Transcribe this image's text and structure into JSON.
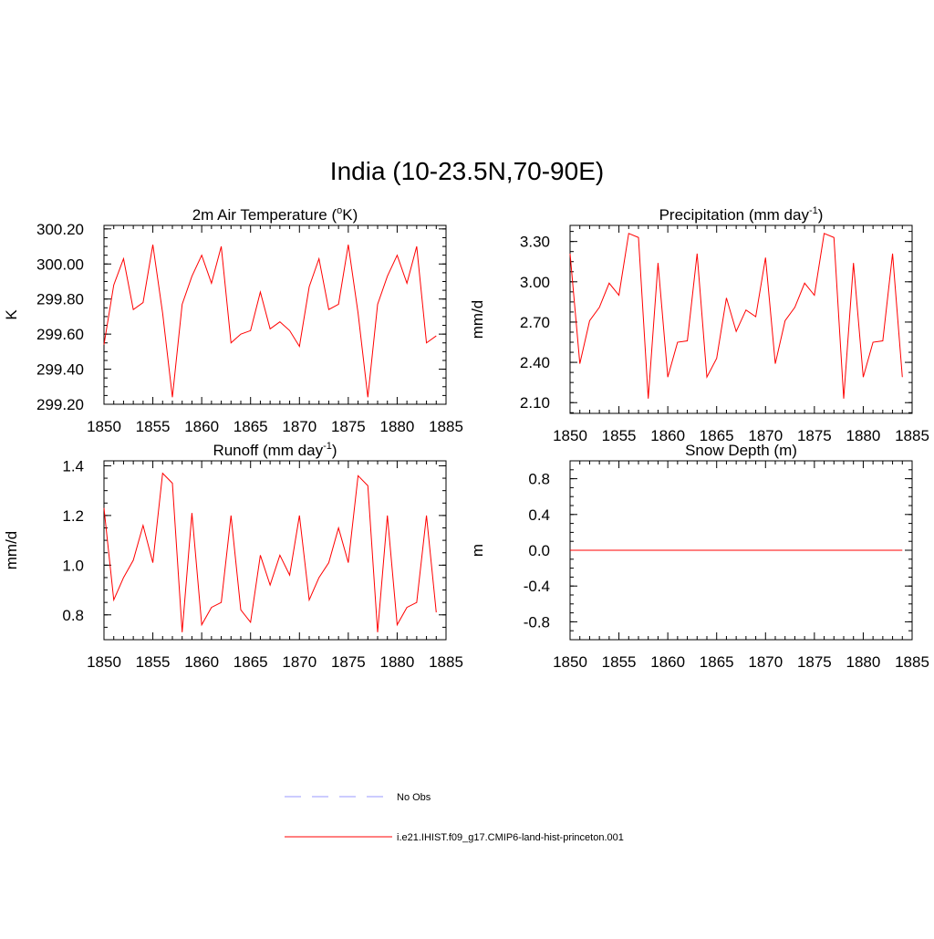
{
  "title": "India (10-23.5N,70-90E)",
  "colors": {
    "model": "#ff0000",
    "obs": "#9999ff",
    "axis": "#000000"
  },
  "legend": [
    {
      "label": "No Obs",
      "style": "dashed",
      "color": "#9999ff"
    },
    {
      "label": "i.e21.IHIST.f09_g17.CMIP6-land-hist-princeton.001",
      "style": "solid",
      "color": "#ff0000"
    }
  ],
  "chart_data": [
    {
      "type": "line",
      "title": "2m Air Temperature (",
      "title_sup": "o",
      "title_after": "K)",
      "ylabel": "K",
      "xlim": [
        1850,
        1885
      ],
      "ylim": [
        299.2,
        300.22
      ],
      "xticks": [
        "1850",
        "1855",
        "1860",
        "1865",
        "1870",
        "1875",
        "1880",
        "1885"
      ],
      "yticks": [
        "299.20",
        "299.40",
        "299.60",
        "299.80",
        "300.00",
        "300.20"
      ],
      "ytick_values": [
        299.2,
        299.4,
        299.6,
        299.8,
        300.0,
        300.2
      ],
      "x": [
        1850,
        1851,
        1852,
        1853,
        1854,
        1855,
        1856,
        1857,
        1858,
        1859,
        1860,
        1861,
        1862,
        1863,
        1864,
        1865,
        1866,
        1867,
        1868,
        1869,
        1870,
        1871,
        1872,
        1873,
        1874,
        1875,
        1876,
        1877,
        1878,
        1879,
        1880,
        1881,
        1882,
        1883,
        1884
      ],
      "series": [
        {
          "values": [
            299.54,
            299.88,
            300.03,
            299.74,
            299.78,
            300.11,
            299.72,
            299.24,
            299.77,
            299.93,
            300.05,
            299.89,
            300.1,
            299.55,
            299.6,
            299.62,
            299.84,
            299.63,
            299.67,
            299.62,
            299.53,
            299.87,
            300.03,
            299.74,
            299.77,
            300.11,
            299.72,
            299.24,
            299.77,
            299.93,
            300.05,
            299.89,
            300.1,
            299.55,
            299.59
          ]
        }
      ]
    },
    {
      "type": "line",
      "title": "Precipitation (mm day",
      "title_sup": "-1",
      "title_after": ")",
      "ylabel": "mm/d",
      "xlim": [
        1850,
        1885
      ],
      "ylim": [
        2.02,
        3.42
      ],
      "xticks": [
        "1850",
        "1855",
        "1860",
        "1865",
        "1870",
        "1875",
        "1880",
        "1885"
      ],
      "yticks": [
        "2.10",
        "2.40",
        "2.70",
        "3.00",
        "3.30"
      ],
      "ytick_values": [
        2.1,
        2.4,
        2.7,
        3.0,
        3.3
      ],
      "x": [
        1850,
        1851,
        1852,
        1853,
        1854,
        1855,
        1856,
        1857,
        1858,
        1859,
        1860,
        1861,
        1862,
        1863,
        1864,
        1865,
        1866,
        1867,
        1868,
        1869,
        1870,
        1871,
        1872,
        1873,
        1874,
        1875,
        1876,
        1877,
        1878,
        1879,
        1880,
        1881,
        1882,
        1883,
        1884
      ],
      "series": [
        {
          "values": [
            3.21,
            2.39,
            2.71,
            2.81,
            2.99,
            2.9,
            3.36,
            3.33,
            2.13,
            3.14,
            2.29,
            2.55,
            2.56,
            3.21,
            2.29,
            2.43,
            2.88,
            2.63,
            2.79,
            2.74,
            3.18,
            2.39,
            2.71,
            2.81,
            2.99,
            2.9,
            3.36,
            3.33,
            2.13,
            3.14,
            2.29,
            2.55,
            2.56,
            3.21,
            2.29
          ]
        }
      ]
    },
    {
      "type": "line",
      "title": "Runoff (mm day",
      "title_sup": "-1",
      "title_after": ")",
      "ylabel": "mm/d",
      "xlim": [
        1850,
        1885
      ],
      "ylim": [
        0.7,
        1.42
      ],
      "xticks": [
        "1850",
        "1855",
        "1860",
        "1865",
        "1870",
        "1875",
        "1880",
        "1885"
      ],
      "yticks": [
        "0.8",
        "1.0",
        "1.2",
        "1.4"
      ],
      "ytick_values": [
        0.8,
        1.0,
        1.2,
        1.4
      ],
      "x": [
        1850,
        1851,
        1852,
        1853,
        1854,
        1855,
        1856,
        1857,
        1858,
        1859,
        1860,
        1861,
        1862,
        1863,
        1864,
        1865,
        1866,
        1867,
        1868,
        1869,
        1870,
        1871,
        1872,
        1873,
        1874,
        1875,
        1876,
        1877,
        1878,
        1879,
        1880,
        1881,
        1882,
        1883,
        1884
      ],
      "series": [
        {
          "values": [
            1.23,
            0.86,
            0.95,
            1.02,
            1.16,
            1.01,
            1.37,
            1.33,
            0.73,
            1.21,
            0.76,
            0.83,
            0.85,
            1.2,
            0.82,
            0.77,
            1.04,
            0.92,
            1.04,
            0.96,
            1.2,
            0.86,
            0.95,
            1.01,
            1.15,
            1.01,
            1.36,
            1.32,
            0.73,
            1.2,
            0.76,
            0.83,
            0.85,
            1.2,
            0.81
          ]
        }
      ]
    },
    {
      "type": "line",
      "title": "Snow Depth (m)",
      "title_sup": "",
      "title_after": "",
      "ylabel": "m",
      "xlim": [
        1850,
        1885
      ],
      "ylim": [
        -1.0,
        1.0
      ],
      "xticks": [
        "1850",
        "1855",
        "1860",
        "1865",
        "1870",
        "1875",
        "1880",
        "1885"
      ],
      "yticks": [
        "-0.8",
        "-0.4",
        "0.0",
        "0.4",
        "0.8"
      ],
      "ytick_values": [
        -0.8,
        -0.4,
        0.0,
        0.4,
        0.8
      ],
      "x": [
        1850,
        1851,
        1852,
        1853,
        1854,
        1855,
        1856,
        1857,
        1858,
        1859,
        1860,
        1861,
        1862,
        1863,
        1864,
        1865,
        1866,
        1867,
        1868,
        1869,
        1870,
        1871,
        1872,
        1873,
        1874,
        1875,
        1876,
        1877,
        1878,
        1879,
        1880,
        1881,
        1882,
        1883,
        1884
      ],
      "series": [
        {
          "values": [
            0,
            0,
            0,
            0,
            0,
            0,
            0,
            0,
            0,
            0,
            0,
            0,
            0,
            0,
            0,
            0,
            0,
            0,
            0,
            0,
            0,
            0,
            0,
            0,
            0,
            0,
            0,
            0,
            0,
            0,
            0,
            0,
            0,
            0,
            0
          ]
        }
      ]
    }
  ]
}
